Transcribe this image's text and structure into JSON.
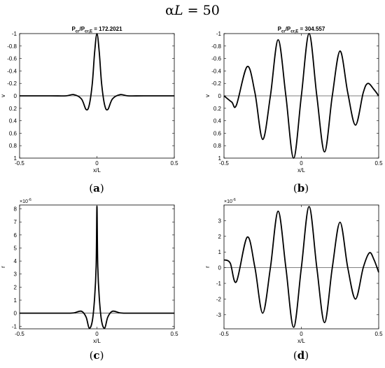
{
  "figure": {
    "title_symbol": "α",
    "title_var": "L",
    "title_rest": " = 50"
  },
  "chart_data": [
    {
      "id": "a",
      "type": "line",
      "caption": "(a)",
      "title": "P_cr/P_cr,E = 172.2021",
      "title_main": "P",
      "title_sub1": "cr",
      "title_slash": "/P",
      "title_sub2": "cr,E",
      "title_value": " = 172.2021",
      "xlabel": "x/L",
      "ylabel": "v",
      "xlim": [
        -0.5,
        0.5
      ],
      "ylim": [
        -1,
        1
      ],
      "y_reversed": true,
      "x_ticks": [
        "-0.5",
        "0",
        "0.5"
      ],
      "x_tick_values": [
        -0.5,
        0,
        0.5
      ],
      "y_ticks": [
        "-1",
        "-0.8",
        "-0.6",
        "-0.4",
        "-0.2",
        "0",
        "0.2",
        "0.4",
        "0.6",
        "0.8",
        "1"
      ],
      "y_tick_values": [
        -1,
        -0.8,
        -0.6,
        -0.4,
        -0.2,
        0,
        0.2,
        0.4,
        0.6,
        0.8,
        1
      ],
      "x": [
        -0.5,
        -0.3,
        -0.2,
        -0.15,
        -0.1,
        -0.07,
        -0.05,
        -0.03,
        -0.015,
        0,
        0.015,
        0.03,
        0.05,
        0.07,
        0.1,
        0.15,
        0.2,
        0.3,
        0.5
      ],
      "y": [
        0,
        0,
        0.0,
        -0.02,
        0.05,
        0.22,
        0.15,
        -0.2,
        -0.7,
        -1,
        -0.7,
        -0.2,
        0.15,
        0.22,
        0.05,
        -0.02,
        0.0,
        0,
        0
      ]
    },
    {
      "id": "b",
      "type": "line",
      "caption": "(b)",
      "title": "P_cr/P_cr,E = 304.557",
      "title_main": "P",
      "title_sub1": "cr",
      "title_slash": "/P",
      "title_sub2": "cr,E",
      "title_value": " = 304.557",
      "xlabel": "x/L",
      "ylabel": "v",
      "xlim": [
        -0.5,
        0.5
      ],
      "ylim": [
        -1,
        1
      ],
      "y_reversed": true,
      "x_ticks": [
        "-0.5",
        "0",
        "0.5"
      ],
      "x_tick_values": [
        -0.5,
        0,
        0.5
      ],
      "y_ticks": [
        "-1",
        "-0.8",
        "-0.6",
        "-0.4",
        "-0.2",
        "0",
        "0.2",
        "0.4",
        "0.6",
        "0.8",
        "1"
      ],
      "y_tick_values": [
        -1,
        -0.8,
        -0.6,
        -0.4,
        -0.2,
        0,
        0.2,
        0.4,
        0.6,
        0.8,
        1
      ],
      "x": [
        -0.5,
        -0.45,
        -0.42,
        -0.35,
        -0.3,
        -0.25,
        -0.2,
        -0.15,
        -0.1,
        -0.05,
        0,
        0.05,
        0.1,
        0.15,
        0.2,
        0.25,
        0.3,
        0.35,
        0.4,
        0.43,
        0.47,
        0.5
      ],
      "y": [
        0,
        0.1,
        0.15,
        -0.47,
        -0.05,
        0.7,
        0.0,
        -0.9,
        0.0,
        1.0,
        0.0,
        -1.0,
        0.0,
        0.9,
        0.0,
        -0.72,
        -0.05,
        0.47,
        -0.05,
        -0.2,
        -0.1,
        0.0
      ]
    },
    {
      "id": "c",
      "type": "line",
      "caption": "(c)",
      "title": "",
      "xlabel": "x/L",
      "ylabel": "r",
      "exponent": "×10",
      "exponent_power": "-6",
      "xlim": [
        -0.5,
        0.5
      ],
      "ylim": [
        -1.2,
        8.3
      ],
      "y_reversed": false,
      "x_ticks": [
        "-0.5",
        "0",
        "0.5"
      ],
      "x_tick_values": [
        -0.5,
        0,
        0.5
      ],
      "y_ticks": [
        "-1",
        "0",
        "1",
        "2",
        "3",
        "4",
        "5",
        "6",
        "7",
        "8"
      ],
      "y_tick_values": [
        -1,
        0,
        1,
        2,
        3,
        4,
        5,
        6,
        7,
        8
      ],
      "x": [
        -0.5,
        -0.3,
        -0.2,
        -0.15,
        -0.1,
        -0.07,
        -0.05,
        -0.03,
        -0.015,
        -0.005,
        0,
        0.005,
        0.015,
        0.03,
        0.05,
        0.07,
        0.1,
        0.15,
        0.2,
        0.3,
        0.5
      ],
      "y": [
        0,
        0,
        0.0,
        0.02,
        0.15,
        -0.3,
        -1.15,
        -0.6,
        1.2,
        3.7,
        8.2,
        3.7,
        1.2,
        -0.6,
        -1.15,
        -0.3,
        0.15,
        0.02,
        0.0,
        0,
        0
      ]
    },
    {
      "id": "d",
      "type": "line",
      "caption": "(d)",
      "title": "",
      "xlabel": "x/L",
      "ylabel": "r",
      "exponent": "×10",
      "exponent_power": "-6",
      "xlim": [
        -0.5,
        0.5
      ],
      "ylim": [
        -3.9,
        4.0
      ],
      "y_reversed": false,
      "x_ticks": [
        "-0.5",
        "0",
        "0.5"
      ],
      "x_tick_values": [
        -0.5,
        0,
        0.5
      ],
      "y_ticks": [
        "-3",
        "-2",
        "-1",
        "0",
        "1",
        "2",
        "3"
      ],
      "y_tick_values": [
        -3,
        -2,
        -1,
        0,
        1,
        2,
        3
      ],
      "x": [
        -0.5,
        -0.46,
        -0.42,
        -0.35,
        -0.3,
        -0.25,
        -0.2,
        -0.15,
        -0.1,
        -0.05,
        0,
        0.05,
        0.1,
        0.15,
        0.2,
        0.25,
        0.3,
        0.35,
        0.4,
        0.44,
        0.47,
        0.5
      ],
      "y": [
        0.5,
        0.3,
        -0.9,
        1.95,
        0.0,
        -2.9,
        0.0,
        3.6,
        0.0,
        -3.8,
        0.0,
        3.9,
        0.0,
        -3.5,
        0.0,
        2.9,
        0.0,
        -2.0,
        0.0,
        0.95,
        0.5,
        -0.3
      ]
    }
  ]
}
